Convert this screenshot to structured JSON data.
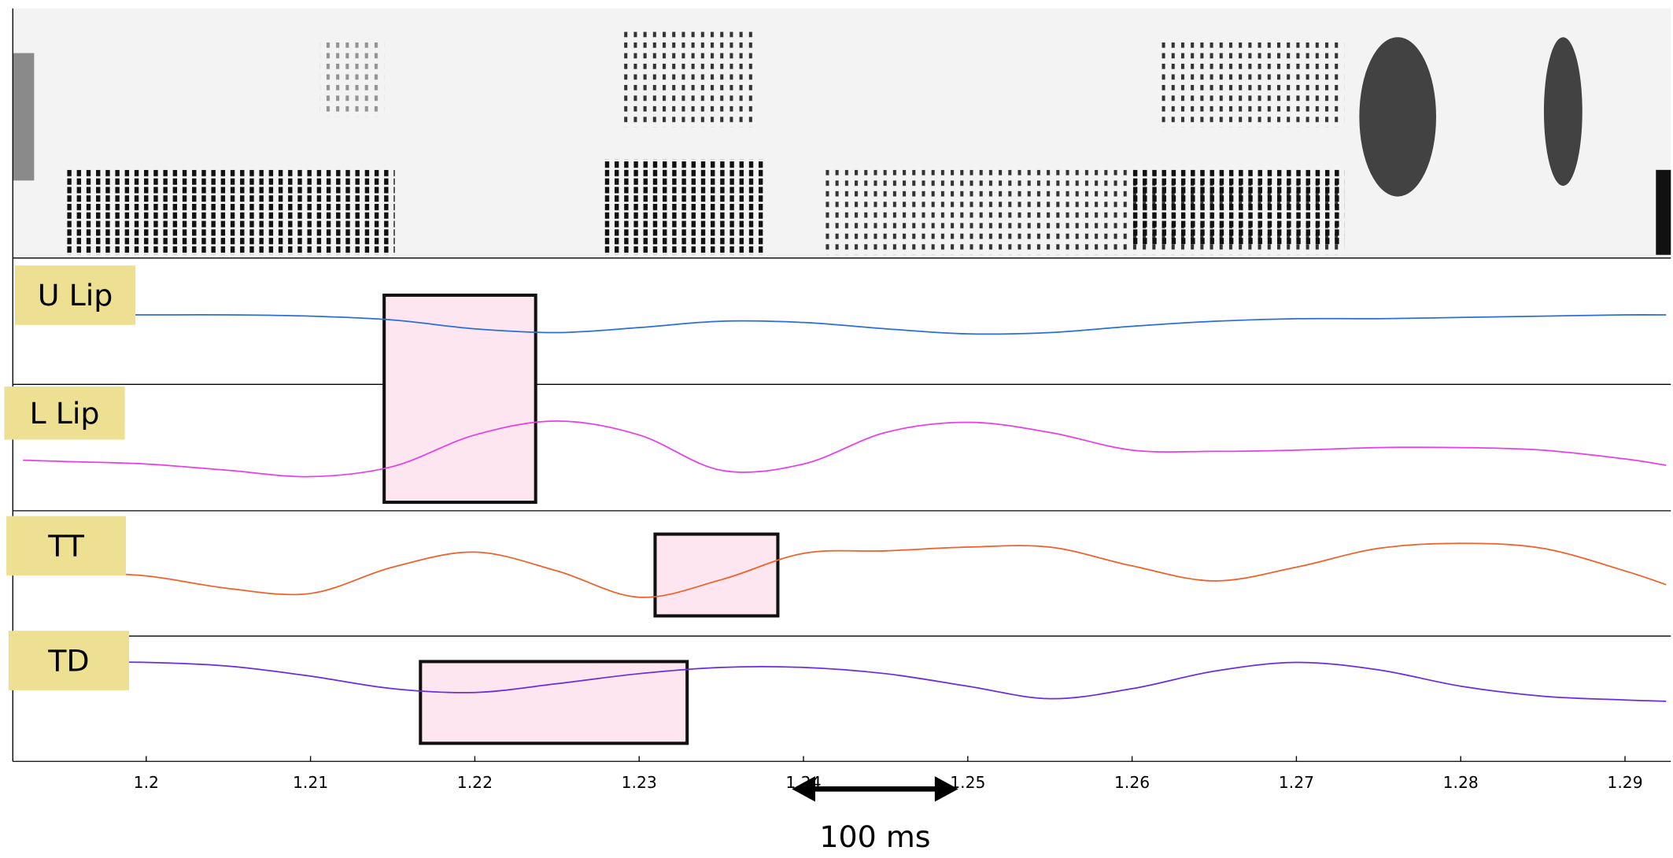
{
  "chart_data": {
    "type": "line",
    "x": [
      1.1925,
      1.195,
      1.2,
      1.205,
      1.21,
      1.215,
      1.22,
      1.225,
      1.23,
      1.235,
      1.24,
      1.245,
      1.25,
      1.255,
      1.26,
      1.265,
      1.27,
      1.275,
      1.28,
      1.285,
      1.29,
      1.2925
    ],
    "series": [
      {
        "name": "U Lip",
        "color": "#2a6fd6",
        "values": [
          55,
          55,
          55,
          55,
          54,
          51,
          44,
          41,
          45,
          50,
          49,
          44,
          40,
          41,
          46,
          50,
          52,
          52,
          53,
          54,
          55,
          55
        ]
      },
      {
        "name": "L Lip",
        "color": "#e83ee8",
        "values": [
          40,
          39,
          37,
          32,
          27,
          35,
          60,
          71,
          60,
          32,
          37,
          62,
          70,
          62,
          48,
          47,
          48,
          50,
          50,
          48,
          41,
          36
        ]
      },
      {
        "name": "TT",
        "color": "#f0602a",
        "values": [
          52,
          51,
          48,
          38,
          34,
          55,
          67,
          52,
          31,
          45,
          66,
          68,
          71,
          71,
          56,
          44,
          55,
          70,
          74,
          70,
          52,
          41
        ]
      },
      {
        "name": "TD",
        "color": "#6b2ce0",
        "values": [
          79,
          79,
          79,
          76,
          68,
          58,
          55,
          62,
          70,
          75,
          75,
          70,
          60,
          50,
          58,
          72,
          79,
          73,
          60,
          52,
          49,
          48
        ]
      }
    ],
    "ylim": [
      0,
      100
    ],
    "xlim": [
      1.19188,
      1.29279
    ],
    "xticks": [
      1.2,
      1.21,
      1.22,
      1.23,
      1.24,
      1.25,
      1.26,
      1.27,
      1.28,
      1.29
    ],
    "boxes": [
      [
        1.21448,
        1.2237
      ],
      [
        1.23097,
        1.23844
      ],
      [
        1.21669,
        1.23292
      ]
    ],
    "scale_bar": {
      "label": "100 ms",
      "x": [
        1.23929,
        1.24942
      ]
    }
  }
}
